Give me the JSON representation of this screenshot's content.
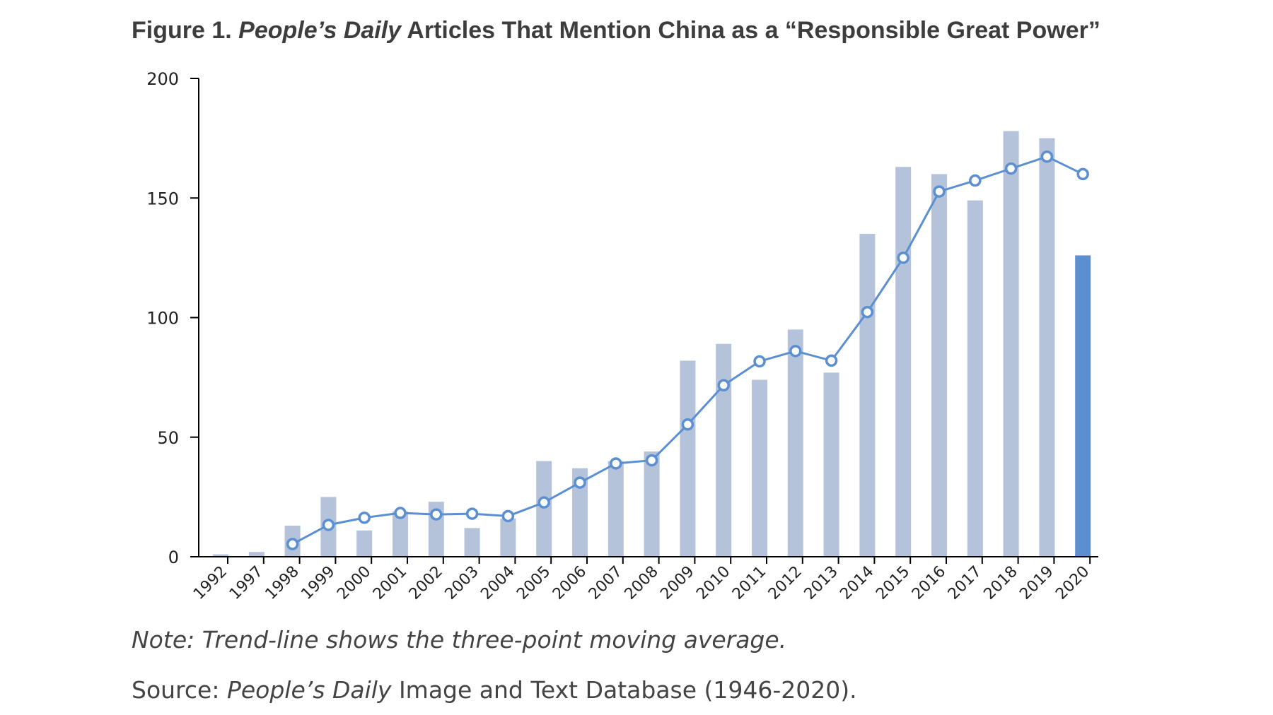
{
  "title": {
    "prefix": "Figure 1.",
    "italic": "People’s Daily",
    "rest": "Articles That Mention China as a “Responsible Great Power”"
  },
  "note": "Note: Trend-line shows the three-point moving average.",
  "source": {
    "prefix": "Source:",
    "italic": "People’s Daily",
    "rest": "Image and Text Database (1946-2020)."
  },
  "colors": {
    "bar": "#b4c3da",
    "bar_highlight": "#5b8fd2",
    "line": "#5b8fd2",
    "axis": "#000000"
  },
  "chart_data": {
    "type": "bar",
    "title": "Figure 1. People’s Daily Articles That Mention China as a “Responsible Great Power”",
    "xlabel": "",
    "ylabel": "",
    "ylim": [
      0,
      200
    ],
    "yticks": [
      0,
      50,
      100,
      150,
      200
    ],
    "categories": [
      "1992",
      "1997",
      "1998",
      "1999",
      "2000",
      "2001",
      "2002",
      "2003",
      "2004",
      "2005",
      "2006",
      "2007",
      "2008",
      "2009",
      "2010",
      "2011",
      "2012",
      "2013",
      "2014",
      "2015",
      "2016",
      "2017",
      "2018",
      "2019",
      "2020"
    ],
    "series": [
      {
        "type": "bar",
        "values": [
          1,
          2,
          13,
          25,
          11,
          19,
          23,
          12,
          16,
          40,
          37,
          40,
          44,
          82,
          89,
          74,
          95,
          77,
          135,
          163,
          160,
          149,
          178,
          175,
          126
        ]
      },
      {
        "type": "line",
        "values": [
          null,
          null,
          5.3,
          13.3,
          16.3,
          18.3,
          17.7,
          18,
          17,
          22.7,
          31,
          39,
          40.3,
          55.3,
          71.7,
          81.7,
          86,
          82,
          102.3,
          125,
          152.7,
          157.3,
          162.3,
          167.3,
          160
        ]
      }
    ],
    "highlight_index": 24,
    "grid": false,
    "legend": "none"
  }
}
